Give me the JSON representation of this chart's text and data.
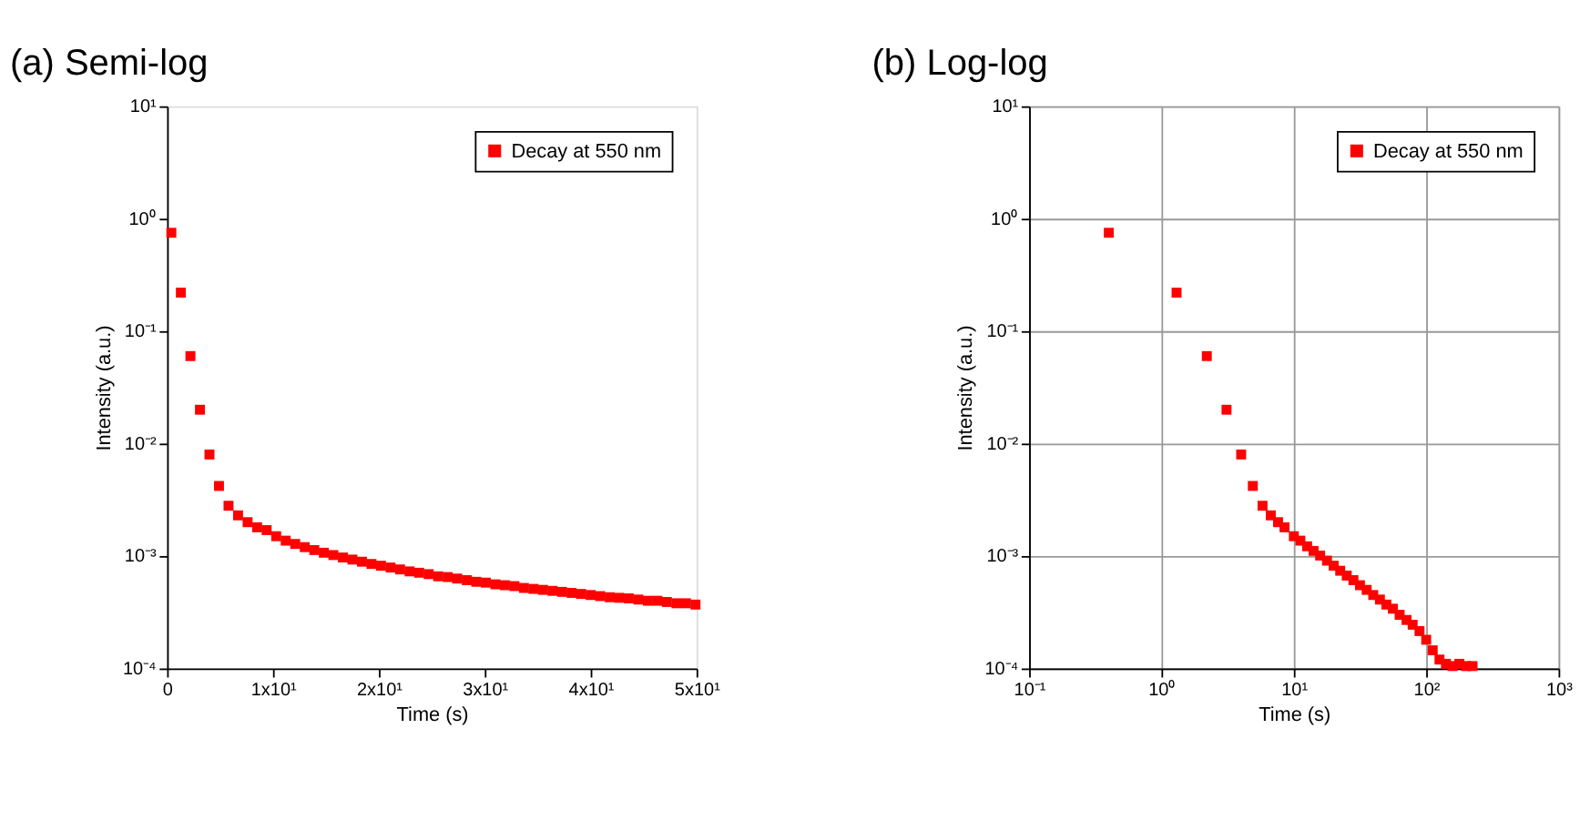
{
  "chart_data": [
    {
      "type": "scatter",
      "title": "(a) Semi-log",
      "xlabel": "Time (s)",
      "ylabel": "Intensity (a.u.)",
      "log": "y",
      "grid": false,
      "legend": "top right",
      "marker": "square",
      "xlim": [
        0,
        50
      ],
      "xticks": [
        0,
        {
          "value": 10,
          "label": "1x10¹"
        },
        {
          "value": 20,
          "label": "2x10¹"
        },
        {
          "value": 30,
          "label": "3x10¹"
        },
        {
          "value": 40,
          "label": "4x10¹"
        },
        {
          "value": 50,
          "label": "5x10¹"
        }
      ],
      "ylim": [
        0.0001,
        10
      ],
      "yticks": [
        {
          "value": 0.0001,
          "label": "10⁻⁴"
        },
        {
          "value": 0.001,
          "label": "10⁻³"
        },
        {
          "value": 0.01,
          "label": "10⁻²"
        },
        {
          "value": 0.1,
          "label": "10⁻¹"
        },
        {
          "value": 1,
          "label": "10⁰"
        },
        {
          "value": 10,
          "label": "10¹"
        }
      ],
      "series": [
        {
          "name": "Decay at 550 nm",
          "color": "#ff0000",
          "x": [
            0.4,
            1.3,
            2.2,
            3.1,
            4.0,
            4.9,
            5.8,
            6.7,
            7.6,
            8.5,
            9.4,
            10.3,
            11.2,
            12.1,
            13.0,
            13.9,
            14.8,
            15.7,
            16.6,
            17.5,
            18.4,
            19.3,
            20.2,
            21.1,
            22.0,
            22.9,
            23.8,
            24.7,
            25.6,
            26.5,
            27.4,
            28.3,
            29.2,
            30.1,
            31.0,
            31.9,
            32.8,
            33.7,
            34.6,
            35.5,
            36.4,
            37.3,
            38.2,
            39.1,
            40.0,
            40.9,
            41.8,
            42.7,
            43.6,
            44.5,
            45.4,
            46.3,
            47.2,
            48.1,
            49.0,
            49.9
          ],
          "values": [
            0.75,
            0.22,
            0.06,
            0.02,
            0.008,
            0.0042,
            0.0028,
            0.0023,
            0.002,
            0.0018,
            0.0017,
            0.0015,
            0.00137,
            0.00128,
            0.0012,
            0.00113,
            0.00107,
            0.00102,
            0.00097,
            0.00093,
            0.00089,
            0.00085,
            0.00082,
            0.00079,
            0.00076,
            0.00073,
            0.00071,
            0.00069,
            0.00066,
            0.00065,
            0.00063,
            0.00061,
            0.00059,
            0.00058,
            0.00056,
            0.00055,
            0.00054,
            0.00052,
            0.00051,
            0.0005,
            0.00049,
            0.00048,
            0.00047,
            0.00046,
            0.00045,
            0.00044,
            0.00043,
            0.000425,
            0.00042,
            0.00041,
            0.0004,
            0.0004,
            0.00039,
            0.00038,
            0.00038,
            0.00037
          ]
        }
      ]
    },
    {
      "type": "scatter",
      "title": "(b) Log-log",
      "xlabel": "Time (s)",
      "ylabel": "Intensity (a.u.)",
      "log": "xy",
      "grid": true,
      "legend": "top right",
      "marker": "square",
      "xlim": [
        0.1,
        1000
      ],
      "xticks": [
        {
          "value": 0.1,
          "label": "10⁻¹"
        },
        {
          "value": 1,
          "label": "10⁰"
        },
        {
          "value": 10,
          "label": "10¹"
        },
        {
          "value": 100,
          "label": "10²"
        },
        {
          "value": 1000,
          "label": "10³"
        }
      ],
      "ylim": [
        0.0001,
        10
      ],
      "yticks": [
        {
          "value": 0.0001,
          "label": "10⁻⁴"
        },
        {
          "value": 0.001,
          "label": "10⁻³"
        },
        {
          "value": 0.01,
          "label": "10⁻²"
        },
        {
          "value": 0.1,
          "label": "10⁻¹"
        },
        {
          "value": 1,
          "label": "10⁰"
        },
        {
          "value": 10,
          "label": "10¹"
        }
      ],
      "series": [
        {
          "name": "Decay at 550 nm",
          "color": "#ff0000",
          "x": [
            0.4,
            1.3,
            2.2,
            3.1,
            4.0,
            4.9,
            5.8,
            6.7,
            7.6,
            8.5,
            10,
            11.2,
            12.6,
            14.1,
            15.8,
            17.8,
            20,
            22.4,
            25.1,
            28.2,
            31.6,
            35.5,
            39.8,
            44.7,
            50,
            56,
            63,
            71,
            79,
            89,
            100,
            112,
            126,
            141,
            158,
            178,
            200,
            224
          ],
          "values": [
            0.75,
            0.22,
            0.06,
            0.02,
            0.008,
            0.0042,
            0.0028,
            0.0023,
            0.002,
            0.0018,
            0.0015,
            0.00137,
            0.00122,
            0.00111,
            0.00101,
            0.00091,
            0.00082,
            0.00074,
            0.00067,
            0.00061,
            0.00055,
            0.0005,
            0.00045,
            0.00041,
            0.00037,
            0.00034,
            0.0003,
            0.00027,
            0.000245,
            0.000215,
            0.00018,
            0.000145,
            0.00012,
            0.00011,
            0.000105,
            0.00011,
            0.000105,
            0.000105
          ]
        }
      ]
    }
  ]
}
